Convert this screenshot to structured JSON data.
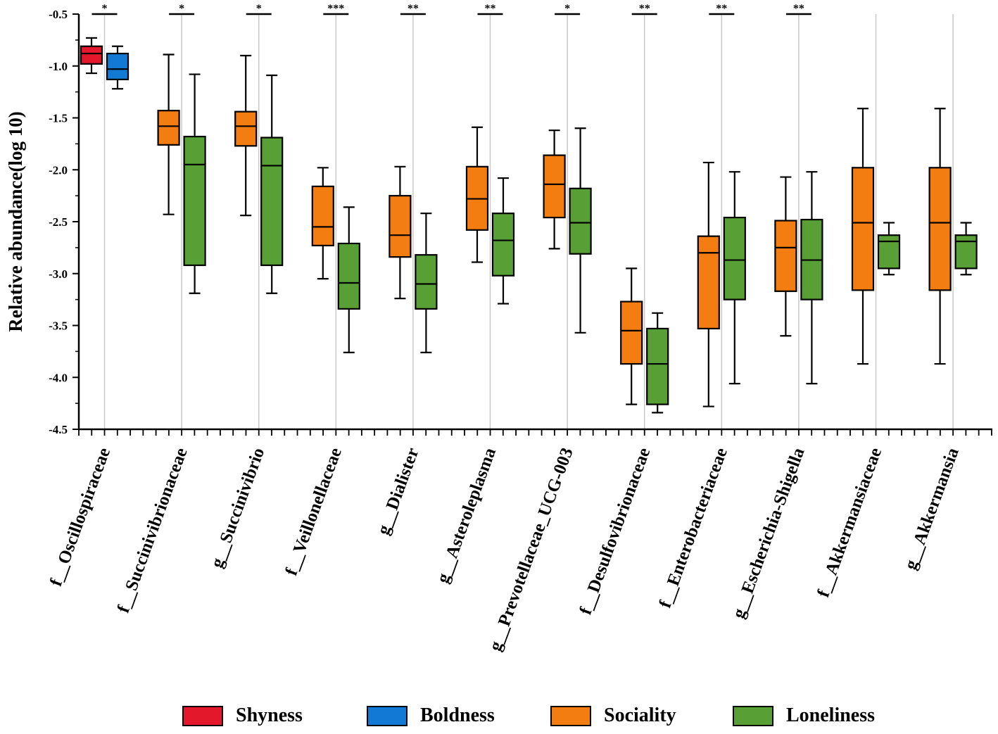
{
  "chart_data": {
    "type": "boxplot",
    "title": "",
    "xlabel": "",
    "ylabel": "Relative abundance(log 10)",
    "ylim": [
      -4.5,
      -0.5
    ],
    "yticks": [
      "-0.5",
      "-1.0",
      "-1.5",
      "-2.0",
      "-2.5",
      "-3.0",
      "-3.5",
      "-4.0",
      "-4.5"
    ],
    "grid": "vertical separators between taxa",
    "legend_position": "bottom",
    "series": [
      {
        "name": "Shyness",
        "color": "#e3192b"
      },
      {
        "name": "Boldness",
        "color": "#1279d4"
      },
      {
        "name": "Sociality",
        "color": "#f47d12"
      },
      {
        "name": "Loneliness",
        "color": "#58a035"
      }
    ],
    "groups": [
      {
        "label": "f__Oscillospiraceae",
        "sig": "*",
        "boxes": [
          {
            "series": "Shyness",
            "min": -1.07,
            "q1": -0.98,
            "median": -0.88,
            "q3": -0.81,
            "max": -0.73
          },
          {
            "series": "Boldness",
            "min": -1.22,
            "q1": -1.13,
            "median": -1.03,
            "q3": -0.88,
            "max": -0.81
          }
        ]
      },
      {
        "label": "f__Succinivibrionaceae",
        "sig": "*",
        "boxes": [
          {
            "series": "Sociality",
            "min": -2.43,
            "q1": -1.76,
            "median": -1.58,
            "q3": -1.43,
            "max": -0.89
          },
          {
            "series": "Loneliness",
            "min": -3.19,
            "q1": -2.92,
            "median": -1.95,
            "q3": -1.68,
            "max": -1.08
          }
        ]
      },
      {
        "label": "g__Succinivibrio",
        "sig": "*",
        "boxes": [
          {
            "series": "Sociality",
            "min": -2.44,
            "q1": -1.77,
            "median": -1.58,
            "q3": -1.44,
            "max": -0.9
          },
          {
            "series": "Loneliness",
            "min": -3.19,
            "q1": -2.92,
            "median": -1.96,
            "q3": -1.69,
            "max": -1.09
          }
        ]
      },
      {
        "label": "f__Veillonellaceae",
        "sig": "***",
        "boxes": [
          {
            "series": "Sociality",
            "min": -3.05,
            "q1": -2.73,
            "median": -2.55,
            "q3": -2.16,
            "max": -1.98
          },
          {
            "series": "Loneliness",
            "min": -3.76,
            "q1": -3.34,
            "median": -3.09,
            "q3": -2.71,
            "max": -2.36
          }
        ]
      },
      {
        "label": "g__Dialister",
        "sig": "**",
        "boxes": [
          {
            "series": "Sociality",
            "min": -3.24,
            "q1": -2.84,
            "median": -2.63,
            "q3": -2.25,
            "max": -1.97
          },
          {
            "series": "Loneliness",
            "min": -3.76,
            "q1": -3.34,
            "median": -3.1,
            "q3": -2.82,
            "max": -2.42
          }
        ]
      },
      {
        "label": "g__Asteroleplasma",
        "sig": "**",
        "boxes": [
          {
            "series": "Sociality",
            "min": -2.89,
            "q1": -2.58,
            "median": -2.28,
            "q3": -1.97,
            "max": -1.59
          },
          {
            "series": "Loneliness",
            "min": -3.29,
            "q1": -3.02,
            "median": -2.68,
            "q3": -2.42,
            "max": -2.08
          }
        ]
      },
      {
        "label": "g__Prevotellaceae_UCG-003",
        "sig": "*",
        "boxes": [
          {
            "series": "Sociality",
            "min": -2.76,
            "q1": -2.46,
            "median": -2.14,
            "q3": -1.86,
            "max": -1.62
          },
          {
            "series": "Loneliness",
            "min": -3.57,
            "q1": -2.81,
            "median": -2.51,
            "q3": -2.18,
            "max": -1.6
          }
        ]
      },
      {
        "label": "f__Desulfovibrionaceae",
        "sig": "**",
        "boxes": [
          {
            "series": "Sociality",
            "min": -4.26,
            "q1": -3.87,
            "median": -3.55,
            "q3": -3.27,
            "max": -2.95
          },
          {
            "series": "Loneliness",
            "min": -4.34,
            "q1": -4.26,
            "median": -3.87,
            "q3": -3.53,
            "max": -3.38
          }
        ]
      },
      {
        "label": "f__Enterobacteriaceae",
        "sig": "**",
        "boxes": [
          {
            "series": "Sociality",
            "min": -4.28,
            "q1": -3.53,
            "median": -2.8,
            "q3": -2.64,
            "max": -1.93
          },
          {
            "series": "Loneliness",
            "min": -4.06,
            "q1": -3.25,
            "median": -2.87,
            "q3": -2.46,
            "max": -2.02
          }
        ]
      },
      {
        "label": "g__Escherichia-Shigella",
        "sig": "**",
        "boxes": [
          {
            "series": "Sociality",
            "min": -3.6,
            "q1": -3.17,
            "median": -2.75,
            "q3": -2.49,
            "max": -2.07
          },
          {
            "series": "Loneliness",
            "min": -4.06,
            "q1": -3.25,
            "median": -2.87,
            "q3": -2.48,
            "max": -2.02
          }
        ]
      },
      {
        "label": "f__Akkermansiaceae",
        "sig": "",
        "boxes": [
          {
            "series": "Sociality",
            "min": -3.87,
            "q1": -3.16,
            "median": -2.51,
            "q3": -1.98,
            "max": -1.41
          },
          {
            "series": "Loneliness",
            "min": -3.01,
            "q1": -2.95,
            "median": -2.69,
            "q3": -2.63,
            "max": -2.51
          }
        ]
      },
      {
        "label": "g__Akkermansia",
        "sig": "",
        "boxes": [
          {
            "series": "Sociality",
            "min": -3.87,
            "q1": -3.16,
            "median": -2.51,
            "q3": -1.98,
            "max": -1.41
          },
          {
            "series": "Loneliness",
            "min": -3.01,
            "q1": -2.95,
            "median": -2.69,
            "q3": -2.63,
            "max": -2.51
          }
        ]
      }
    ]
  }
}
